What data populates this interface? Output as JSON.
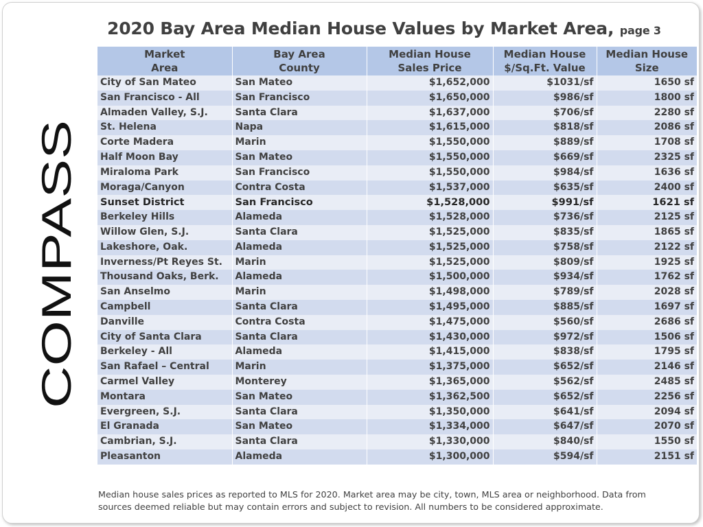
{
  "logo": {
    "text": "COMPASS"
  },
  "title": {
    "main": "2020 Bay Area Median House Values by Market Area,",
    "suffix": "page 3"
  },
  "table": {
    "headers": [
      {
        "line1": "Market",
        "line2": "Area"
      },
      {
        "line1": "Bay Area",
        "line2": "County"
      },
      {
        "line1": "Median House",
        "line2": "Sales Price"
      },
      {
        "line1": "Median House",
        "line2": "$/Sq.Ft. Value"
      },
      {
        "line1": "Median House",
        "line2": "Size"
      }
    ],
    "rows": [
      {
        "area": "City of San Mateo",
        "county": "San Mateo",
        "price": "$1,652,000",
        "psf": "$1031/sf",
        "size": "1650  sf"
      },
      {
        "area": "San Francisco - All",
        "county": "San Francisco",
        "price": "$1,650,000",
        "psf": "$986/sf",
        "size": "1800  sf"
      },
      {
        "area": "Almaden Valley, S.J.",
        "county": "Santa Clara",
        "price": "$1,637,000",
        "psf": "$706/sf",
        "size": "2280  sf"
      },
      {
        "area": "St. Helena",
        "county": "Napa",
        "price": "$1,615,000",
        "psf": "$818/sf",
        "size": "2086  sf"
      },
      {
        "area": "Corte Madera",
        "county": "Marin",
        "price": "$1,550,000",
        "psf": "$889/sf",
        "size": "1708  sf"
      },
      {
        "area": "Half Moon Bay",
        "county": "San Mateo",
        "price": "$1,550,000",
        "psf": "$669/sf",
        "size": "2325  sf"
      },
      {
        "area": "Miraloma Park",
        "county": "San Francisco",
        "price": "$1,550,000",
        "psf": "$984/sf",
        "size": "1636  sf"
      },
      {
        "area": "Moraga/Canyon",
        "county": "Contra Costa",
        "price": "$1,537,000",
        "psf": "$635/sf",
        "size": "2400  sf"
      },
      {
        "area": "Sunset District",
        "county": "San Francisco",
        "price": "$1,528,000",
        "psf": "$991/sf",
        "size": "1621  sf"
      },
      {
        "area": "Berkeley Hills",
        "county": "Alameda",
        "price": "$1,528,000",
        "psf": "$736/sf",
        "size": "2125  sf"
      },
      {
        "area": "Willow Glen, S.J.",
        "county": "Santa Clara",
        "price": "$1,525,000",
        "psf": "$835/sf",
        "size": "1865  sf"
      },
      {
        "area": "Lakeshore, Oak.",
        "county": "Alameda",
        "price": "$1,525,000",
        "psf": "$758/sf",
        "size": "2122  sf"
      },
      {
        "area": "Inverness/Pt Reyes St.",
        "county": "Marin",
        "price": "$1,525,000",
        "psf": "$809/sf",
        "size": "1925  sf"
      },
      {
        "area": "Thousand Oaks, Berk.",
        "county": "Alameda",
        "price": "$1,500,000",
        "psf": "$934/sf",
        "size": "1762  sf"
      },
      {
        "area": "San Anselmo",
        "county": "Marin",
        "price": "$1,498,000",
        "psf": "$789/sf",
        "size": "2028  sf"
      },
      {
        "area": "Campbell",
        "county": "Santa Clara",
        "price": "$1,495,000",
        "psf": "$885/sf",
        "size": "1697  sf"
      },
      {
        "area": "Danville",
        "county": "Contra Costa",
        "price": "$1,475,000",
        "psf": "$560/sf",
        "size": "2686  sf"
      },
      {
        "area": "City of Santa Clara",
        "county": "Santa Clara",
        "price": "$1,430,000",
        "psf": "$972/sf",
        "size": "1506  sf"
      },
      {
        "area": "Berkeley - All",
        "county": "Alameda",
        "price": "$1,415,000",
        "psf": "$838/sf",
        "size": "1795  sf"
      },
      {
        "area": "San Rafael – Central",
        "county": "Marin",
        "price": "$1,375,000",
        "psf": "$652/sf",
        "size": "2146  sf"
      },
      {
        "area": "Carmel Valley",
        "county": "Monterey",
        "price": "$1,365,000",
        "psf": "$562/sf",
        "size": "2485  sf"
      },
      {
        "area": "Montara",
        "county": "San Mateo",
        "price": "$1,362,500",
        "psf": "$652/sf",
        "size": "2256  sf"
      },
      {
        "area": "Evergreen, S.J.",
        "county": "Santa Clara",
        "price": "$1,350,000",
        "psf": "$641/sf",
        "size": "2094  sf"
      },
      {
        "area": "El Granada",
        "county": "San Mateo",
        "price": "$1,334,000",
        "psf": "$647/sf",
        "size": "2070  sf"
      },
      {
        "area": "Cambrian, S.J.",
        "county": "Santa Clara",
        "price": "$1,330,000",
        "psf": "$840/sf",
        "size": "1550  sf"
      },
      {
        "area": "Pleasanton",
        "county": "Alameda",
        "price": "$1,300,000",
        "psf": "$594/sf",
        "size": "2151  sf"
      }
    ],
    "highlighted_row": "Sunset District"
  },
  "footnote": {
    "line1": "Median house sales prices as  reported to MLS for 2020.  Market area may be city, town, MLS area or neighborhood. Data from",
    "line2": "sources deemed reliable but may contain errors and subject to revision. All numbers to be considered approximate."
  },
  "colors": {
    "header_bg": "#b4c7e7",
    "row_light": "#e9edf6",
    "row_dark": "#d2dbee",
    "text": "#404040",
    "logo": "#111111"
  }
}
